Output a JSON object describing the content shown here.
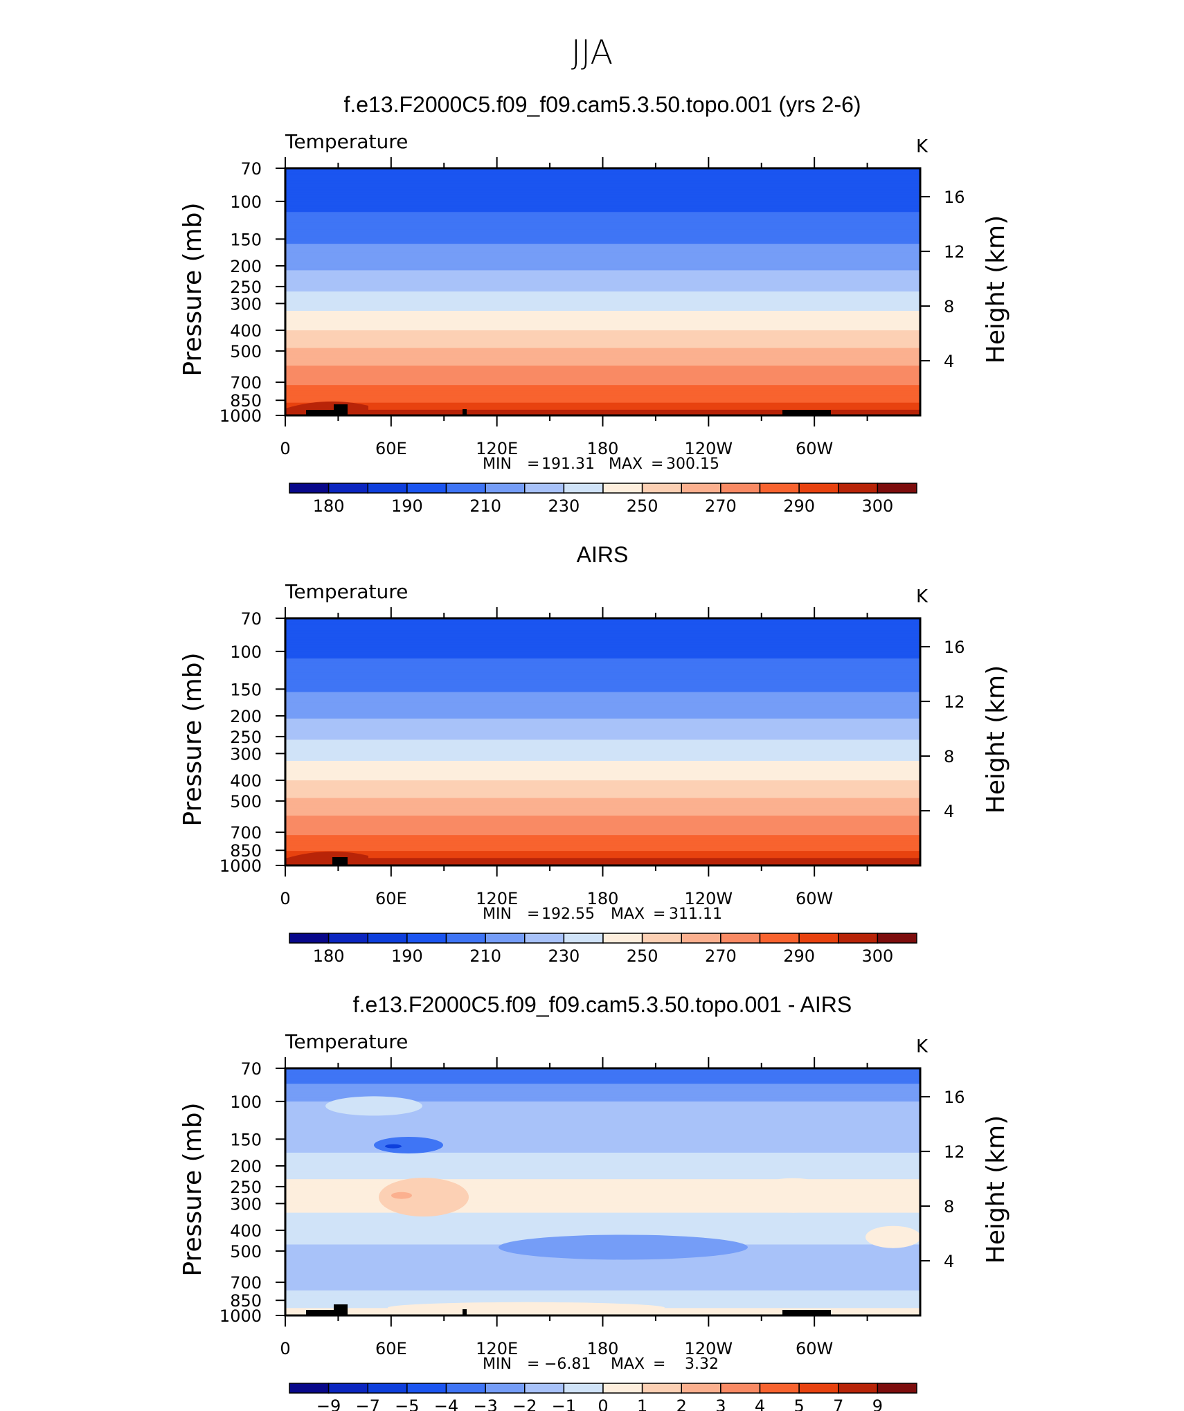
{
  "page_title": "JJA",
  "colors": {
    "scale": [
      "#08088a",
      "#0b26c0",
      "#0e3fdc",
      "#1b55f0",
      "#3f75f5",
      "#759df7",
      "#a8c2f9",
      "#d0e3f8",
      "#fdeedd",
      "#fcd0b4",
      "#fbb08f",
      "#f98a64",
      "#f8632f",
      "#e8420f",
      "#b82408",
      "#7d0d0d"
    ],
    "topography": "#000000"
  },
  "panels": [
    {
      "title": "f.e13.F2000C5.f09_f09.cam5.3.50.topo.001 (yrs 2-6)",
      "variable": "Temperature",
      "units": "K",
      "stats": {
        "min_label": "MIN",
        "min": "191.31",
        "max_label": "MAX",
        "max": "300.15"
      },
      "colorbar_labels": [
        "180",
        "190",
        "210",
        "230",
        "250",
        "270",
        "290",
        "300"
      ]
    },
    {
      "title": "AIRS",
      "variable": "Temperature",
      "units": "K",
      "stats": {
        "min_label": "MIN",
        "min": "192.55",
        "max_label": "MAX",
        "max": "311.11"
      },
      "colorbar_labels": [
        "180",
        "190",
        "210",
        "230",
        "250",
        "270",
        "290",
        "300"
      ]
    },
    {
      "title": "f.e13.F2000C5.f09_f09.cam5.3.50.topo.001 - AIRS",
      "variable": "Temperature",
      "units": "K",
      "stats": {
        "min_label": "MIN",
        "min": "−6.81",
        "max_label": "MAX",
        "max": "3.32"
      },
      "colorbar_labels": [
        "−9",
        "−7",
        "−5",
        "−4",
        "−3",
        "−2",
        "−1",
        "0",
        "1",
        "2",
        "3",
        "4",
        "5",
        "7",
        "9"
      ]
    }
  ],
  "chart_data": [
    {
      "type": "heatmap",
      "title": "f.e13.F2000C5.f09_f09.cam5.3.50.topo.001 (yrs 2-6)",
      "subtitle": "Temperature",
      "units": "K",
      "x_ticks": [
        "0",
        "60E",
        "120E",
        "180",
        "120W",
        "60W"
      ],
      "y_label": "Pressure (mb)",
      "y_ticks": [
        "70",
        "100",
        "150",
        "200",
        "250",
        "300",
        "400",
        "500",
        "700",
        "850",
        "1000"
      ],
      "y_range": [
        1000,
        70
      ],
      "y_scale": "log",
      "y2_label": "Height (km)",
      "y2_ticks": [
        "4",
        "8",
        "12",
        "16"
      ],
      "levels": [
        {
          "p": 70,
          "T": 196
        },
        {
          "p": 100,
          "T": 197
        },
        {
          "p": 150,
          "T": 208
        },
        {
          "p": 200,
          "T": 218
        },
        {
          "p": 250,
          "T": 227
        },
        {
          "p": 300,
          "T": 236
        },
        {
          "p": 400,
          "T": 250
        },
        {
          "p": 500,
          "T": 262
        },
        {
          "p": 700,
          "T": 278
        },
        {
          "p": 850,
          "T": 288
        },
        {
          "p": 1000,
          "T": 298
        }
      ],
      "contour_levels": [
        180,
        185,
        190,
        200,
        210,
        220,
        230,
        240,
        250,
        260,
        270,
        280,
        290,
        295,
        300
      ],
      "min": 191.31,
      "max": 300.15
    },
    {
      "type": "heatmap",
      "title": "AIRS",
      "subtitle": "Temperature",
      "units": "K",
      "x_ticks": [
        "0",
        "60E",
        "120E",
        "180",
        "120W",
        "60W"
      ],
      "y_label": "Pressure (mb)",
      "y_ticks": [
        "70",
        "100",
        "150",
        "200",
        "250",
        "300",
        "400",
        "500",
        "700",
        "850",
        "1000"
      ],
      "y_range": [
        1000,
        70
      ],
      "y_scale": "log",
      "y2_label": "Height (km)",
      "y2_ticks": [
        "4",
        "8",
        "12",
        "16"
      ],
      "levels": [
        {
          "p": 70,
          "T": 198
        },
        {
          "p": 100,
          "T": 198
        },
        {
          "p": 150,
          "T": 209
        },
        {
          "p": 200,
          "T": 219
        },
        {
          "p": 250,
          "T": 228
        },
        {
          "p": 300,
          "T": 236
        },
        {
          "p": 400,
          "T": 250
        },
        {
          "p": 500,
          "T": 262
        },
        {
          "p": 700,
          "T": 278
        },
        {
          "p": 850,
          "T": 289
        },
        {
          "p": 1000,
          "T": 300
        }
      ],
      "contour_levels": [
        180,
        185,
        190,
        200,
        210,
        220,
        230,
        240,
        250,
        260,
        270,
        280,
        290,
        295,
        300
      ],
      "min": 192.55,
      "max": 311.11
    },
    {
      "type": "heatmap",
      "title": "f.e13.F2000C5.f09_f09.cam5.3.50.topo.001 - AIRS",
      "subtitle": "Temperature",
      "units": "K",
      "x_ticks": [
        "0",
        "60E",
        "120E",
        "180",
        "120W",
        "60W"
      ],
      "y_label": "Pressure (mb)",
      "y_ticks": [
        "70",
        "100",
        "150",
        "200",
        "250",
        "300",
        "400",
        "500",
        "700",
        "850",
        "1000"
      ],
      "y_range": [
        1000,
        70
      ],
      "y_scale": "log",
      "y2_label": "Height (km)",
      "y2_ticks": [
        "4",
        "8",
        "12",
        "16"
      ],
      "levels": [
        {
          "p": 70,
          "dT": -4
        },
        {
          "p": 100,
          "dT": -2
        },
        {
          "p": 150,
          "dT": -1.5
        },
        {
          "p": 200,
          "dT": -0.5
        },
        {
          "p": 250,
          "dT": 0.3
        },
        {
          "p": 300,
          "dT": 0.3
        },
        {
          "p": 400,
          "dT": -0.5
        },
        {
          "p": 500,
          "dT": -1.2
        },
        {
          "p": 700,
          "dT": -1.5
        },
        {
          "p": 850,
          "dT": -0.5
        },
        {
          "p": 1000,
          "dT": 0.5
        }
      ],
      "contour_levels": [
        -9,
        -7,
        -5,
        -4,
        -3,
        -2,
        -1,
        0,
        1,
        2,
        3,
        4,
        5,
        7,
        9
      ],
      "min": -6.81,
      "max": 3.32
    }
  ]
}
